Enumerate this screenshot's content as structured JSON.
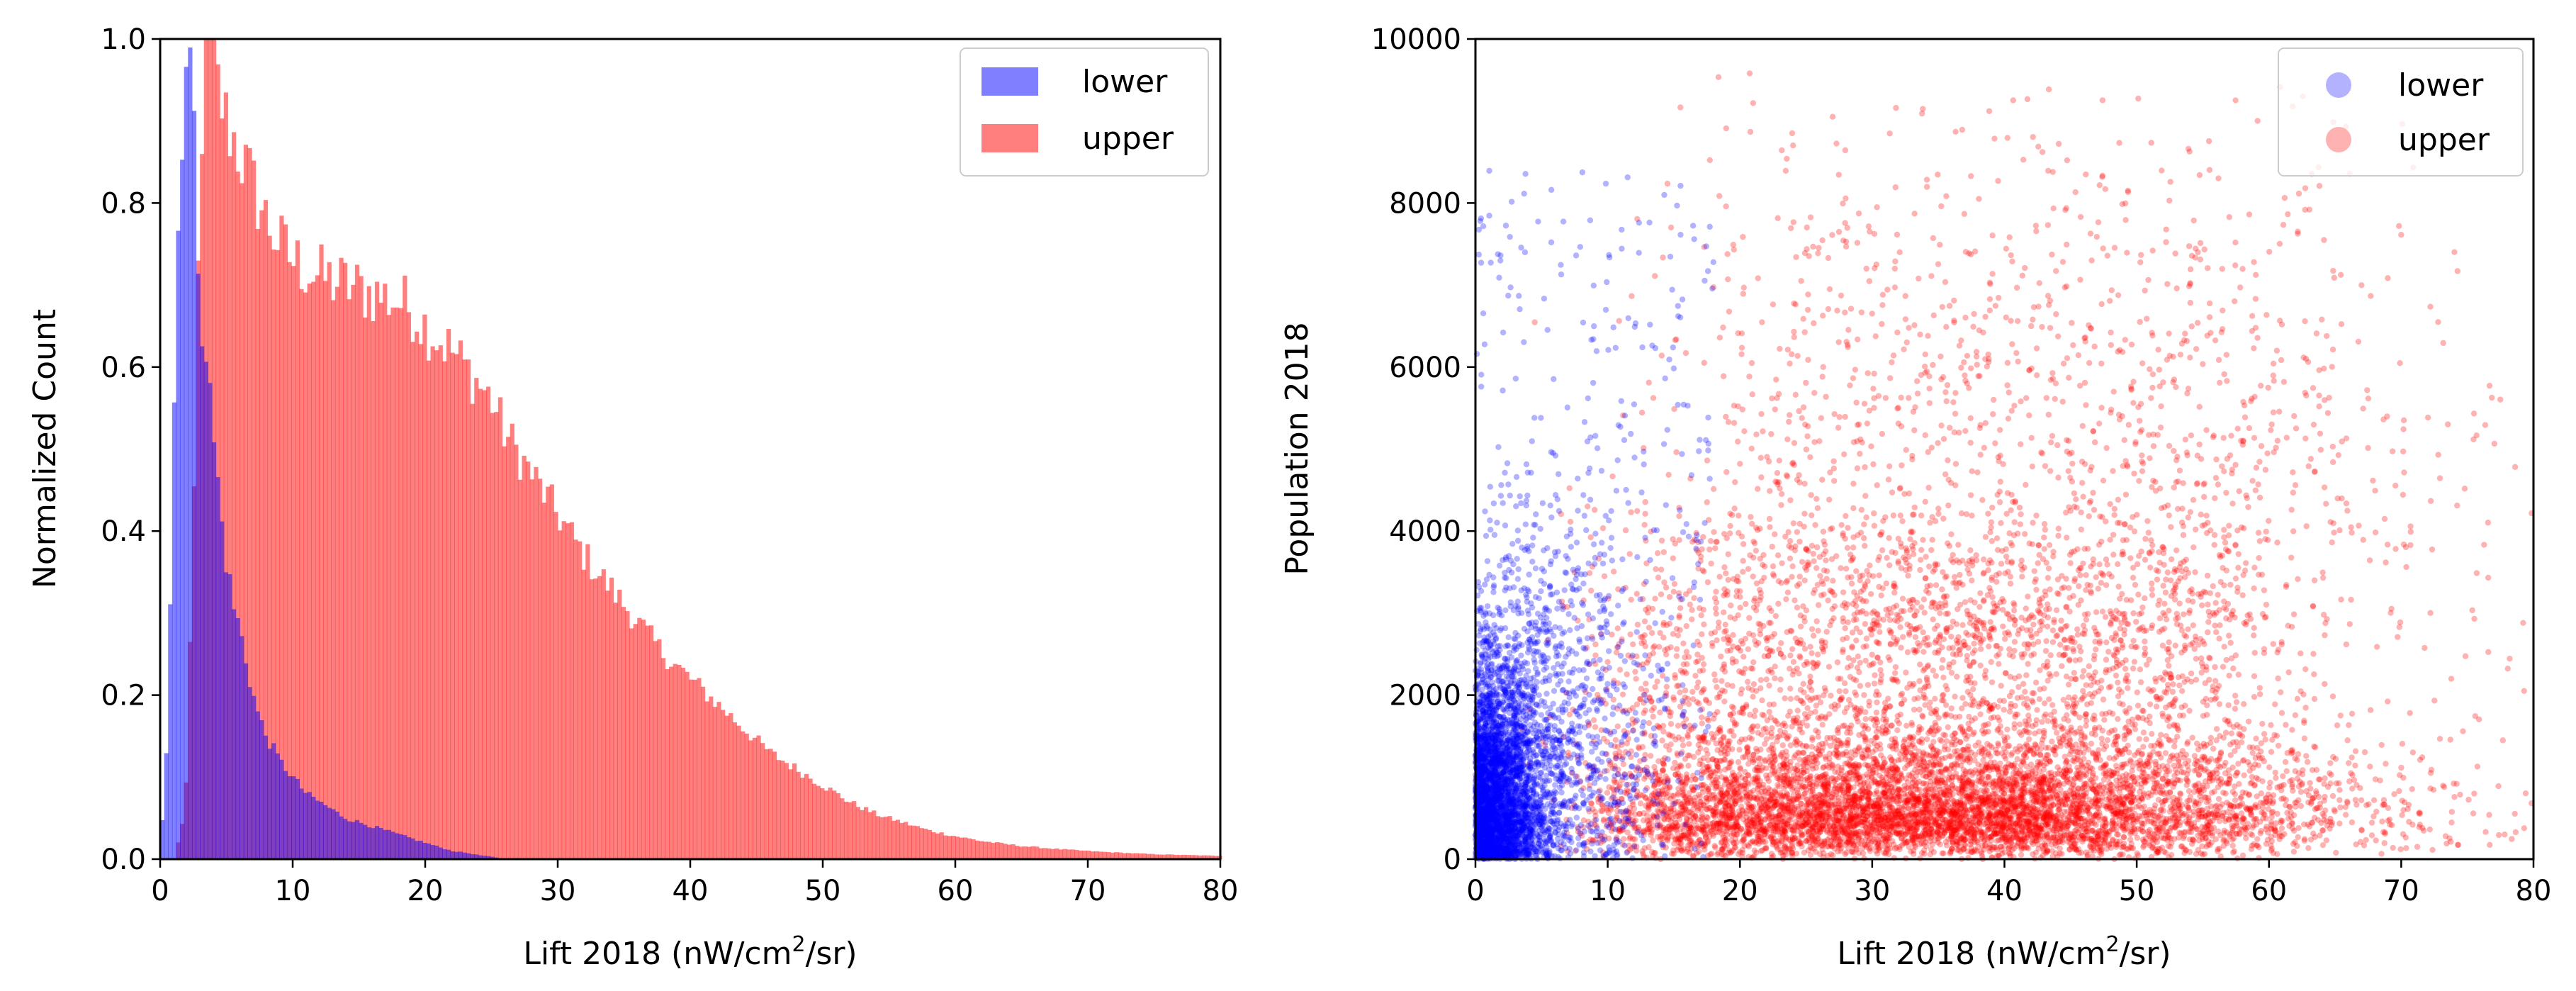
{
  "chart_data": [
    {
      "type": "histogram",
      "xlabel": {
        "prefix": "Lift 2018 (nW/cm",
        "sup": "2",
        "suffix": "/sr)"
      },
      "ylabel": "Normalized Count",
      "xlim": [
        0,
        80
      ],
      "ylim": [
        0,
        1.0
      ],
      "xticks": [
        "0",
        "10",
        "20",
        "30",
        "40",
        "50",
        "60",
        "70",
        "80"
      ],
      "yticks": [
        "0.0",
        "0.2",
        "0.4",
        "0.6",
        "0.8",
        "1.0"
      ],
      "legend": {
        "location": "top-right",
        "entries": [
          "lower",
          "upper"
        ]
      },
      "series": [
        {
          "name": "lower",
          "color": "#0000ff",
          "alpha": 0.5,
          "bin_width": 0.3,
          "peaks": [
            [
              0.2,
              0.05
            ],
            [
              0.5,
              0.15
            ],
            [
              0.8,
              0.35
            ],
            [
              1.1,
              0.6
            ],
            [
              1.4,
              0.8
            ],
            [
              1.7,
              0.92
            ],
            [
              2.0,
              1.0
            ],
            [
              2.3,
              0.97
            ],
            [
              2.6,
              0.85
            ],
            [
              2.9,
              0.72
            ],
            [
              3.2,
              0.65
            ],
            [
              3.5,
              0.62
            ],
            [
              3.8,
              0.55
            ],
            [
              4.1,
              0.5
            ],
            [
              4.4,
              0.45
            ],
            [
              4.7,
              0.4
            ],
            [
              5.0,
              0.36
            ],
            [
              5.5,
              0.31
            ],
            [
              6.0,
              0.28
            ],
            [
              6.5,
              0.24
            ],
            [
              7.0,
              0.2
            ],
            [
              7.5,
              0.17
            ],
            [
              8.0,
              0.15
            ],
            [
              9.0,
              0.12
            ],
            [
              10.0,
              0.1
            ],
            [
              11.0,
              0.08
            ],
            [
              12.0,
              0.07
            ],
            [
              13.0,
              0.06
            ],
            [
              14.0,
              0.05
            ],
            [
              15.0,
              0.045
            ],
            [
              16.0,
              0.04
            ],
            [
              17.0,
              0.035
            ],
            [
              18.0,
              0.03
            ],
            [
              19.0,
              0.025
            ],
            [
              20.0,
              0.02
            ],
            [
              21.0,
              0.015
            ],
            [
              22.0,
              0.01
            ],
            [
              23.0,
              0.008
            ],
            [
              24.0,
              0.005
            ],
            [
              25.0,
              0.003
            ],
            [
              26.0,
              0.0
            ]
          ]
        },
        {
          "name": "upper",
          "color": "#ff0000",
          "alpha": 0.5,
          "bin_width": 0.3,
          "peaks": [
            [
              1.5,
              0.02
            ],
            [
              2.0,
              0.1
            ],
            [
              2.5,
              0.4
            ],
            [
              3.0,
              0.85
            ],
            [
              3.5,
              1.0
            ],
            [
              4.0,
              0.97
            ],
            [
              4.5,
              0.93
            ],
            [
              5.0,
              0.9
            ],
            [
              6.0,
              0.86
            ],
            [
              7.0,
              0.82
            ],
            [
              8.0,
              0.78
            ],
            [
              9.0,
              0.75
            ],
            [
              10.0,
              0.73
            ],
            [
              12.0,
              0.71
            ],
            [
              14.0,
              0.7
            ],
            [
              16.0,
              0.69
            ],
            [
              18.0,
              0.68
            ],
            [
              19.0,
              0.67
            ],
            [
              20.0,
              0.65
            ],
            [
              22.0,
              0.62
            ],
            [
              24.0,
              0.58
            ],
            [
              25.0,
              0.56
            ],
            [
              26.0,
              0.52
            ],
            [
              28.0,
              0.47
            ],
            [
              30.0,
              0.42
            ],
            [
              32.0,
              0.37
            ],
            [
              34.0,
              0.33
            ],
            [
              36.0,
              0.29
            ],
            [
              38.0,
              0.25
            ],
            [
              40.0,
              0.22
            ],
            [
              42.0,
              0.19
            ],
            [
              44.0,
              0.16
            ],
            [
              46.0,
              0.13
            ],
            [
              48.0,
              0.11
            ],
            [
              50.0,
              0.09
            ],
            [
              52.0,
              0.07
            ],
            [
              54.0,
              0.055
            ],
            [
              56.0,
              0.045
            ],
            [
              58.0,
              0.035
            ],
            [
              60.0,
              0.028
            ],
            [
              62.0,
              0.022
            ],
            [
              65.0,
              0.016
            ],
            [
              68.0,
              0.012
            ],
            [
              71.0,
              0.009
            ],
            [
              75.0,
              0.006
            ],
            [
              80.0,
              0.004
            ]
          ]
        }
      ]
    },
    {
      "type": "scatter",
      "xlabel": {
        "prefix": "Lift 2018 (nW/cm",
        "sup": "2",
        "suffix": "/sr)"
      },
      "ylabel": "Population 2018",
      "xlim": [
        0,
        80
      ],
      "ylim": [
        0,
        10000
      ],
      "xticks": [
        "0",
        "10",
        "20",
        "30",
        "40",
        "50",
        "60",
        "70",
        "80"
      ],
      "yticks": [
        "0",
        "2000",
        "4000",
        "6000",
        "8000",
        "10000"
      ],
      "legend": {
        "location": "top-right",
        "entries": [
          "lower",
          "upper"
        ]
      },
      "series": [
        {
          "name": "lower",
          "color": "#0000ff",
          "alpha": 0.3,
          "x_range": [
            0,
            20
          ],
          "y_range": [
            0,
            8500
          ],
          "density_center": [
            1,
            500
          ]
        },
        {
          "name": "upper",
          "color": "#ff0000",
          "alpha": 0.3,
          "x_range": [
            5,
            80
          ],
          "y_range": [
            0,
            10000
          ],
          "density_center": [
            30,
            500
          ]
        }
      ]
    }
  ]
}
